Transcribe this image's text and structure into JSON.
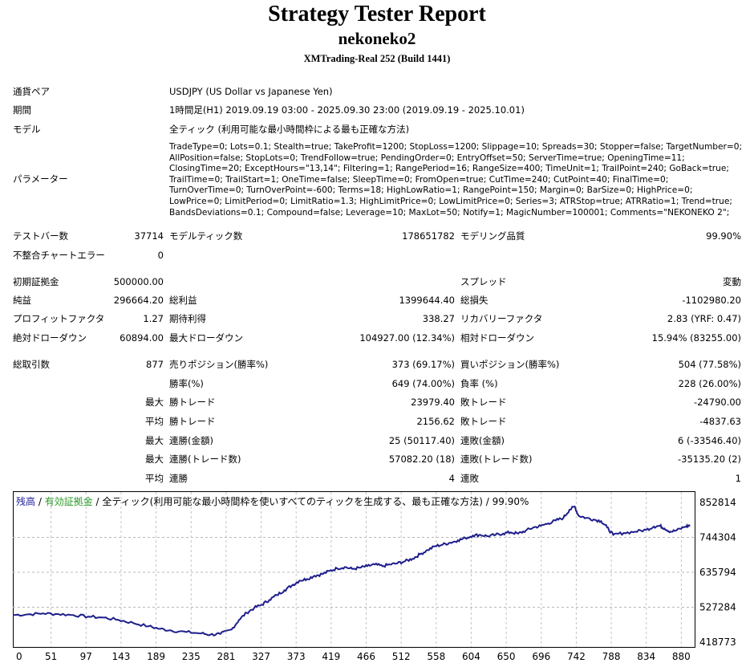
{
  "header": {
    "title": "Strategy Tester Report",
    "subtitle": "nekoneko2",
    "server": "XMTrading-Real 252 (Build 1441)"
  },
  "info": {
    "pair_label": "通貨ペア",
    "pair_value": "USDJPY (US Dollar vs Japanese Yen)",
    "period_label": "期間",
    "period_value": "1時間足(H1) 2019.09.19 03:00 - 2025.09.30 23:00 (2019.09.19 - 2025.10.01)",
    "model_label": "モデル",
    "model_value": "全ティック (利用可能な最小時間枠による最も正確な方法)",
    "params_label": "パラメーター",
    "params_value": "TradeType=0; Lots=0.1; Stealth=true; TakeProfit=1200; StopLoss=1200; Slippage=10; Spreads=30; Stopper=false; TargetNumber=0; AllPosition=false; StopLots=0; TrendFollow=true; PendingOrder=0; EntryOffset=50; ServerTime=true; OpeningTime=11; ClosingTime=20; ExceptHours=\"13,14\"; Filtering=1; RangePeriod=16; RangeSize=400; TimeUnit=1; TrailPoint=240; GoBack=true; TrailTime=0; TrailStart=1; OneTime=false; SleepTime=0; FromOpen=true; CutTime=240; CutPoint=40; FinalTime=0; TurnOverTime=0; TurnOverPoint=-600; Terms=18; HighLowRatio=1; RangePoint=150; Margin=0; BarSize=0; HighPrice=0; LowPrice=0; LimitPeriod=0; LimitRatio=1.3; HighLimitPrice=0; LowLimitPrice=0; Series=3; ATRStop=true; ATRRatio=1; Trend=true; BandsDeviations=0.1; Compound=false; Leverage=10; MaxLot=50; Notify=1; MagicNumber=100001; Comments=\"NEKONEKO 2\";"
  },
  "stats": {
    "bars_label": "テストバー数",
    "bars": "37714",
    "ticks_label": "モデルティック数",
    "ticks": "178651782",
    "quality_label": "モデリング品質",
    "quality": "99.90%",
    "mismatch_label": "不整合チャートエラー",
    "mismatch": "0",
    "deposit_label": "初期証拠金",
    "deposit": "500000.00",
    "spread_label": "スプレッド",
    "spread": "変動",
    "net_label": "純益",
    "net": "296664.20",
    "gross_profit_label": "総利益",
    "gross_profit": "1399644.40",
    "gross_loss_label": "総損失",
    "gross_loss": "-1102980.20",
    "pf_label": "プロフィットファクタ",
    "pf": "1.27",
    "expected_label": "期待利得",
    "expected": "338.27",
    "recovery_label": "リカバリーファクタ",
    "recovery": "2.83 (YRF: 0.47)",
    "abs_dd_label": "絶対ドローダウン",
    "abs_dd": "60894.00",
    "max_dd_label": "最大ドローダウン",
    "max_dd": "104927.00 (12.34%)",
    "rel_dd_label": "相対ドローダウン",
    "rel_dd": "15.94% (83255.00)",
    "total_trades_label": "総取引数",
    "total_trades": "877",
    "short_label": "売りポジション(勝率%)",
    "short": "373 (69.17%)",
    "long_label": "買いポジション(勝率%)",
    "long": "504 (77.58%)",
    "win_rate_label": "勝率(%)",
    "win_rate": "649 (74.00%)",
    "loss_rate_label": "負率 (%)",
    "loss_rate": "228 (26.00%)",
    "max_label": "最大",
    "avg_label": "平均",
    "win_trade_label": "勝トレード",
    "lose_trade_label": "敗トレード",
    "max_win": "23979.40",
    "max_loss": "-24790.00",
    "avg_win": "2156.62",
    "avg_loss": "-4837.63",
    "consec_win_amt_label": "連勝(金額)",
    "consec_win_amt": "25 (50117.40)",
    "consec_loss_amt_label": "連敗(金額)",
    "consec_loss_amt": "6 (-33546.40)",
    "consec_win_cnt_label": "連勝(トレード数)",
    "consec_win_cnt": "57082.20 (18)",
    "consec_loss_cnt_label": "連敗(トレード数)",
    "consec_loss_cnt": "-35135.20 (2)",
    "avg_consec_win_label": "連勝",
    "avg_consec_win": "4",
    "avg_consec_loss_label": "連敗",
    "avg_consec_loss": "1"
  },
  "chart_legend": {
    "balance": "残高",
    "sep1": " / ",
    "equity": "有効証拠金",
    "rest": " / 全ティック(利用可能な最小時間枠を使いすべてのティックを生成する、最も正確な方法) / 99.90%"
  },
  "chart_data": {
    "type": "line",
    "x_ticks": [
      "0",
      "51",
      "97",
      "143",
      "189",
      "235",
      "281",
      "327",
      "373",
      "419",
      "466",
      "512",
      "558",
      "604",
      "650",
      "696",
      "742",
      "788",
      "834",
      "880"
    ],
    "y_ticks": [
      "852814",
      "744304",
      "635794",
      "527284",
      "418773"
    ],
    "ylim": [
      418773,
      852814
    ],
    "xlim": [
      0,
      904
    ],
    "series": [
      {
        "values": [
          [
            0,
            503000
          ],
          [
            20,
            505000
          ],
          [
            40,
            508000
          ],
          [
            60,
            506000
          ],
          [
            80,
            503000
          ],
          [
            100,
            498000
          ],
          [
            120,
            495000
          ],
          [
            140,
            488000
          ],
          [
            160,
            478000
          ],
          [
            180,
            468000
          ],
          [
            195,
            460000
          ],
          [
            210,
            455000
          ],
          [
            230,
            450000
          ],
          [
            250,
            446000
          ],
          [
            262,
            442000
          ],
          [
            275,
            444000
          ],
          [
            290,
            458000
          ],
          [
            300,
            488000
          ],
          [
            310,
            510000
          ],
          [
            320,
            525000
          ],
          [
            330,
            535000
          ],
          [
            340,
            550000
          ],
          [
            350,
            565000
          ],
          [
            360,
            580000
          ],
          [
            370,
            595000
          ],
          [
            380,
            610000
          ],
          [
            390,
            615000
          ],
          [
            400,
            625000
          ],
          [
            410,
            630000
          ],
          [
            420,
            640000
          ],
          [
            430,
            648000
          ],
          [
            440,
            652000
          ],
          [
            450,
            646000
          ],
          [
            460,
            650000
          ],
          [
            470,
            655000
          ],
          [
            480,
            660000
          ],
          [
            490,
            655000
          ],
          [
            500,
            660000
          ],
          [
            510,
            664000
          ],
          [
            520,
            670000
          ],
          [
            530,
            678000
          ],
          [
            540,
            692000
          ],
          [
            550,
            705000
          ],
          [
            560,
            717000
          ],
          [
            570,
            722000
          ],
          [
            580,
            728000
          ],
          [
            590,
            735000
          ],
          [
            600,
            742000
          ],
          [
            610,
            750000
          ],
          [
            620,
            752000
          ],
          [
            630,
            748000
          ],
          [
            640,
            752000
          ],
          [
            650,
            756000
          ],
          [
            660,
            760000
          ],
          [
            670,
            756000
          ],
          [
            680,
            765000
          ],
          [
            690,
            775000
          ],
          [
            700,
            780000
          ],
          [
            710,
            788000
          ],
          [
            720,
            797000
          ],
          [
            730,
            805000
          ],
          [
            738,
            830000
          ],
          [
            745,
            840000
          ],
          [
            750,
            812000
          ],
          [
            760,
            805000
          ],
          [
            770,
            800000
          ],
          [
            780,
            795000
          ],
          [
            788,
            775000
          ],
          [
            796,
            752000
          ],
          [
            810,
            758000
          ],
          [
            825,
            762000
          ],
          [
            840,
            768000
          ],
          [
            850,
            778000
          ],
          [
            858,
            780000
          ],
          [
            864,
            772000
          ],
          [
            872,
            762000
          ],
          [
            880,
            766000
          ],
          [
            892,
            778000
          ],
          [
            898,
            782000
          ]
        ]
      }
    ],
    "line_color": "#1e1e8c",
    "grid": true
  },
  "colors": {
    "balance": "#1a1a9a",
    "equity": "#2a9a2a"
  }
}
